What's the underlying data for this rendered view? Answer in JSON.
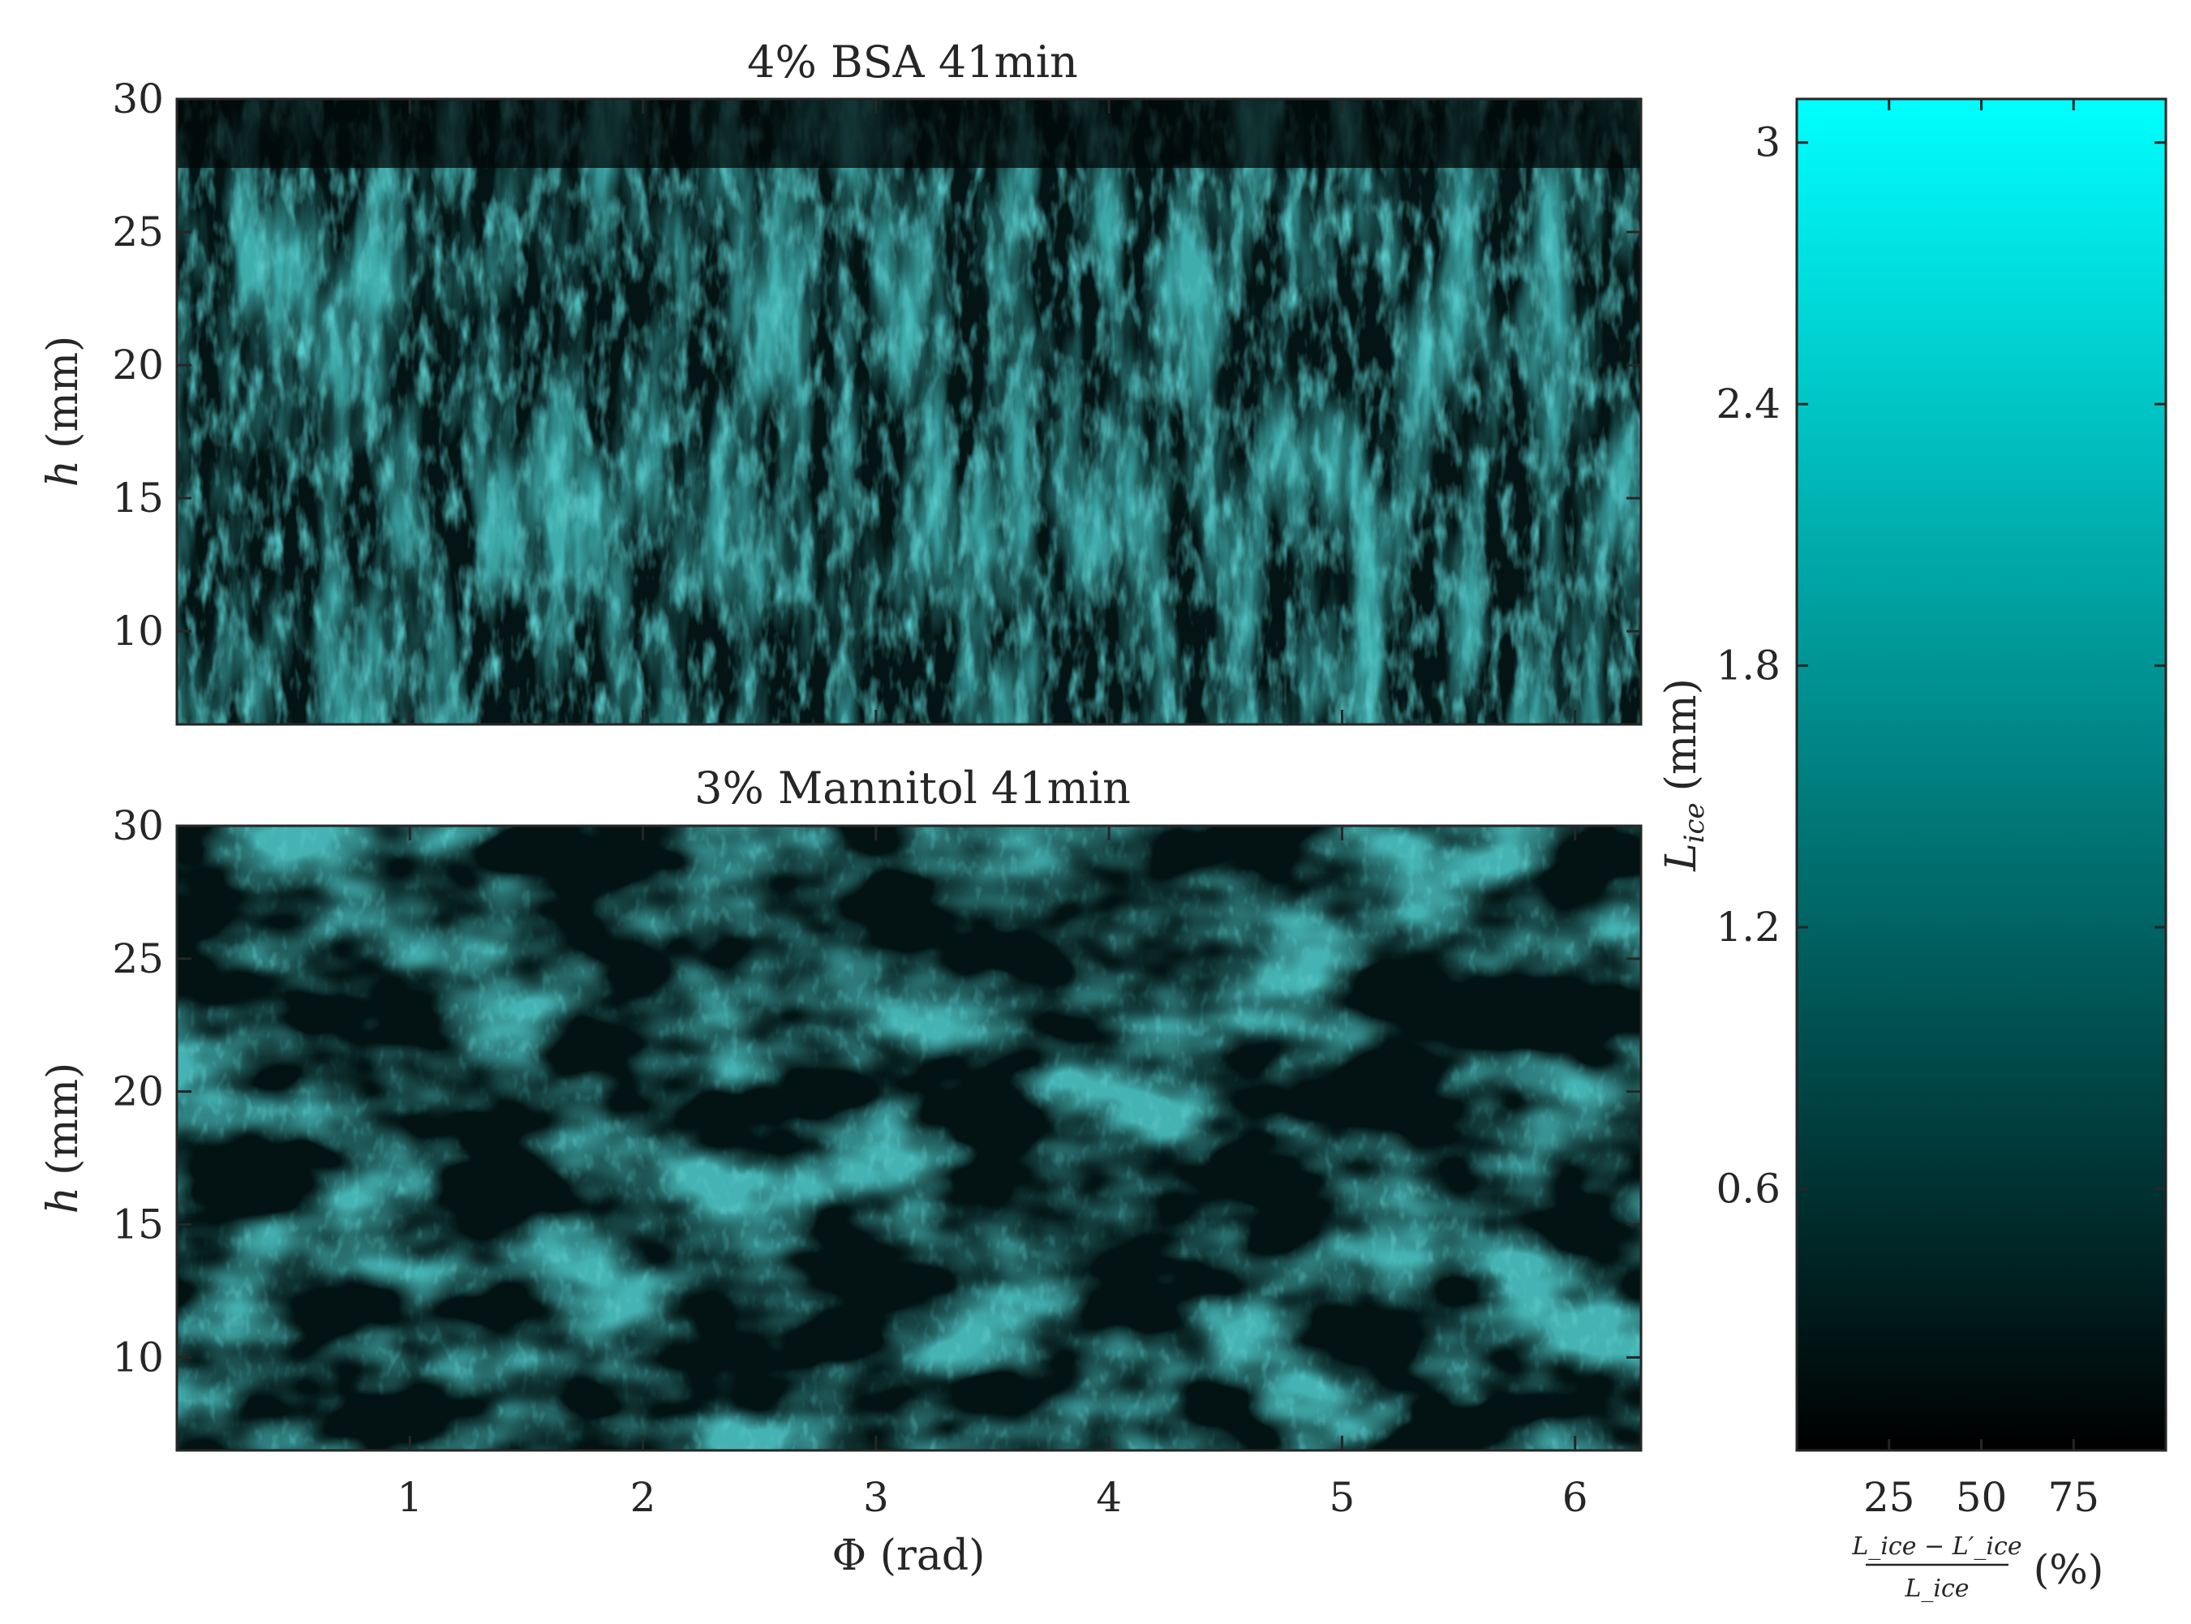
{
  "chart_data": [
    {
      "type": "heatmap",
      "title": "4% BSA 41min",
      "ylabel_symbol": "h",
      "ylabel_unit": "(mm)",
      "xlabel": "",
      "xlim": [
        0,
        6.283
      ],
      "ylim": [
        6.5,
        30
      ],
      "yticks": [
        10,
        15,
        20,
        25,
        30
      ],
      "xticks": [
        1,
        2,
        3,
        4,
        5,
        6
      ],
      "show_xtick_labels": false,
      "grid": false,
      "dominant_color": "#1a8c8c"
    },
    {
      "type": "heatmap",
      "title": "3% Mannitol 41min",
      "ylabel_symbol": "h",
      "ylabel_unit": "(mm)",
      "xlabel": "Φ (rad)",
      "xlim": [
        0,
        6.283
      ],
      "ylim": [
        6.5,
        30
      ],
      "yticks": [
        10,
        15,
        20,
        25,
        30
      ],
      "xticks": [
        1,
        2,
        3,
        4,
        5,
        6
      ],
      "show_xtick_labels": true,
      "grid": false,
      "dominant_color": "#178585"
    }
  ],
  "colorbar": {
    "type": "2d-colormap",
    "ylabel_symbol": "L",
    "ylabel_sub": "ice",
    "ylabel_unit": "(mm)",
    "ylim": [
      0,
      3.1
    ],
    "yticks": [
      0.6,
      1.2,
      1.8,
      2.4,
      3
    ],
    "ytick_labels": [
      "0.6",
      "1.2",
      "1.8",
      "2.4",
      "3"
    ],
    "xlim": [
      0,
      100
    ],
    "xticks": [
      25,
      50,
      75
    ],
    "xtick_labels": [
      "25",
      "50",
      "75"
    ],
    "xlabel_num": "L_ice − L′_ice",
    "xlabel_den": "L_ice",
    "xlabel_unit": "(%)",
    "colors": {
      "top_left": "#00ffff",
      "top_right": "#ffff00",
      "bottom_left": "#000000",
      "bottom_right": "#ff0000"
    }
  }
}
